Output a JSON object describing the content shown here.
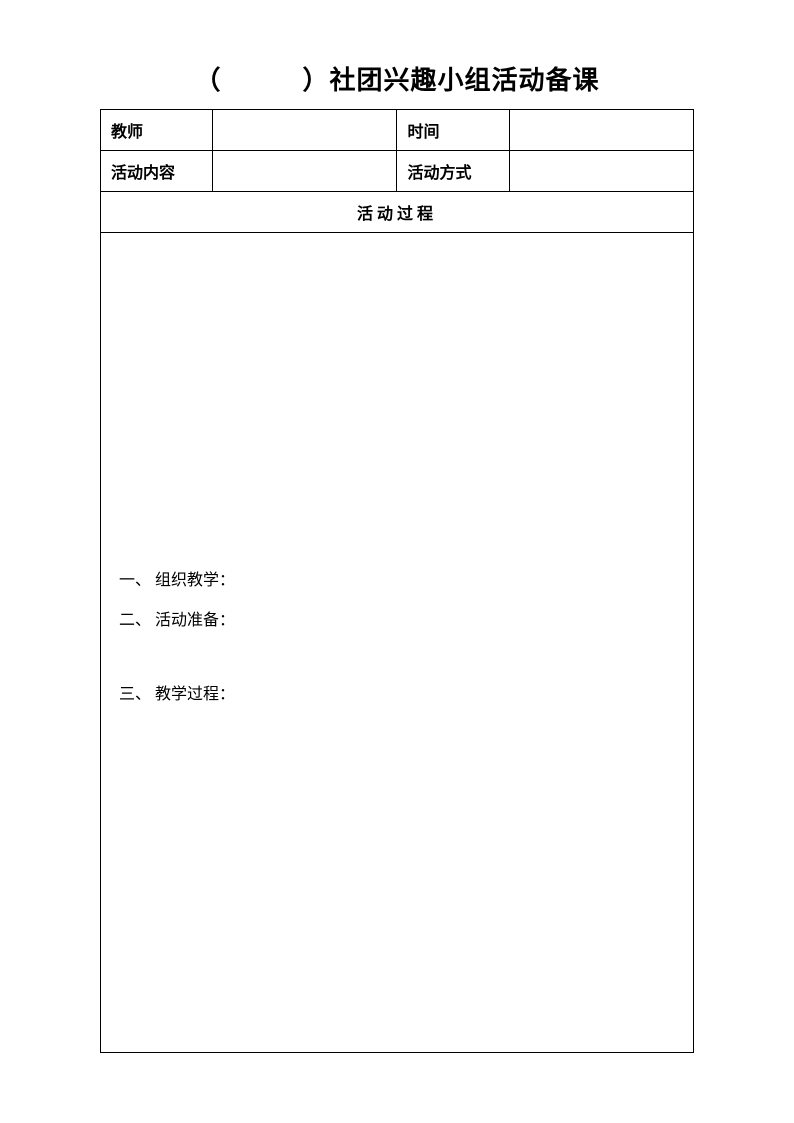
{
  "title": "（　　　）社团兴趣小组活动备课",
  "table": {
    "row1": {
      "label1": "教师",
      "value1": "",
      "label2": "时间",
      "value2": ""
    },
    "row2": {
      "label1": "活动内容",
      "value1": "",
      "label2": "活动方式",
      "value2": ""
    },
    "sectionHeader": "活动过程",
    "content": {
      "item1": "一、 组织教学：",
      "item2": "二、 活动准备：",
      "item3": "三、 教学过程："
    }
  },
  "styles": {
    "pageWidth": 794,
    "pageHeight": 1123,
    "backgroundColor": "#ffffff",
    "textColor": "#000000",
    "borderColor": "#000000",
    "titleFontSize": 26,
    "bodyFontSize": 16,
    "sectionHeaderFontSize": 18
  }
}
